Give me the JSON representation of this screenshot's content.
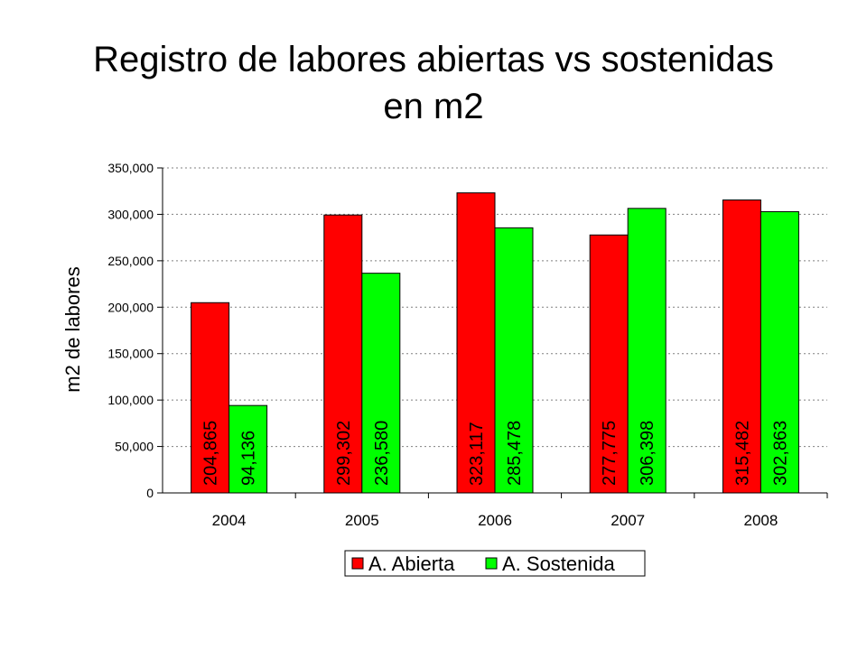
{
  "slide": {
    "title_line1": "Registro de labores abiertas vs sostenidas",
    "title_line2": "en m2"
  },
  "chart_data": {
    "type": "bar",
    "categories": [
      "2004",
      "2005",
      "2006",
      "2007",
      "2008"
    ],
    "series": [
      {
        "name": "A. Abierta",
        "color": "#ff0000",
        "values": [
          204865,
          299302,
          323117,
          277775,
          315482
        ]
      },
      {
        "name": "A. Sostenida",
        "color": "#00ff00",
        "values": [
          94136,
          236580,
          285478,
          306398,
          302863
        ]
      }
    ],
    "data_labels": [
      [
        "204,865",
        "299,302",
        "323,117",
        "277,775",
        "315,482"
      ],
      [
        "94,136",
        "236,580",
        "285,478",
        "306,398",
        "302,863"
      ]
    ],
    "title": "",
    "xlabel": "",
    "ylabel": "m2 de labores",
    "ylim": [
      0,
      350000
    ],
    "yticks": [
      0,
      50000,
      100000,
      150000,
      200000,
      250000,
      300000,
      350000
    ],
    "ytick_labels": [
      "0",
      "50,000",
      "100,000",
      "150,000",
      "200,000",
      "250,000",
      "300,000",
      "350,000"
    ],
    "grid": true,
    "legend_position": "bottom"
  }
}
